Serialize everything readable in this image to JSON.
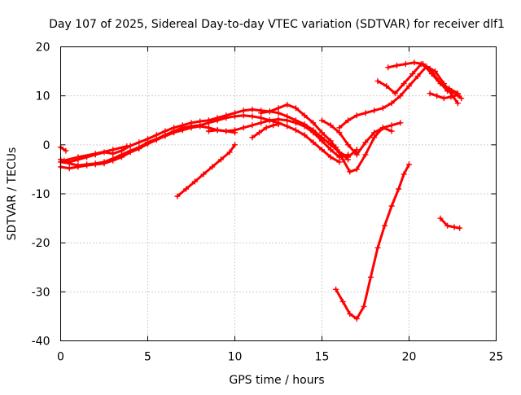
{
  "chart_data": {
    "type": "line",
    "title": "Day 107 of 2025, Sidereal Day-to-day VTEC variation (SDTVAR) for receiver dlf1",
    "xlabel": "GPS time / hours",
    "ylabel": "SDTVAR / TECUs",
    "xlim": [
      0,
      25
    ],
    "ylim": [
      -40,
      20
    ],
    "xticks": [
      0,
      5,
      10,
      15,
      20,
      25
    ],
    "yticks": [
      -40,
      -30,
      -20,
      -10,
      0,
      10,
      20
    ],
    "xtick_labels": [
      "0",
      "5",
      "10",
      "15",
      "20",
      "25"
    ],
    "ytick_labels": [
      "-40",
      "-30",
      "-20",
      "-10",
      "0",
      "10",
      "20"
    ],
    "grid": true,
    "legend": "none",
    "series_color": "#ff0000",
    "series": [
      {
        "name": "s1",
        "x": [
          0.0,
          0.5,
          1.0,
          1.5,
          2.0,
          2.5,
          3.0,
          3.5,
          4.0,
          4.5,
          5.0,
          5.5,
          6.0,
          6.5,
          7.0,
          7.5,
          8.0,
          8.5,
          9.0,
          9.5,
          10.0,
          10.5,
          11.0,
          11.5,
          12.0,
          12.5,
          13.0,
          13.5,
          14.0,
          14.5,
          15.0,
          15.5,
          16.0
        ],
        "y": [
          -3.5,
          -3.8,
          -4.2,
          -4.0,
          -3.8,
          -3.5,
          -2.8,
          -2.0,
          -1.2,
          -0.5,
          0.5,
          1.2,
          2.0,
          2.8,
          3.5,
          3.8,
          4.0,
          4.5,
          5.0,
          5.5,
          5.8,
          6.0,
          5.8,
          5.5,
          5.0,
          4.5,
          3.8,
          3.0,
          2.0,
          0.5,
          -1.0,
          -2.5,
          -3.5
        ]
      },
      {
        "name": "s2",
        "x": [
          0.0,
          0.5,
          1.0,
          1.5,
          2.0,
          2.5,
          3.0,
          3.5,
          4.0,
          4.5,
          5.0,
          5.5,
          6.0,
          6.5,
          7.0,
          7.5,
          8.0,
          8.5,
          9.0,
          9.5,
          10.0,
          10.5,
          11.0,
          11.5,
          12.0,
          12.5,
          13.0,
          13.5,
          14.0,
          14.5,
          15.0,
          15.5,
          16.0,
          16.5
        ],
        "y": [
          -4.5,
          -4.8,
          -4.5,
          -4.2,
          -4.0,
          -3.8,
          -3.2,
          -2.5,
          -1.5,
          -0.8,
          0.2,
          1.0,
          1.8,
          2.5,
          3.0,
          3.5,
          3.8,
          3.5,
          3.0,
          2.8,
          3.0,
          3.5,
          4.0,
          4.5,
          5.0,
          5.2,
          5.0,
          4.5,
          3.8,
          2.5,
          0.8,
          -1.0,
          -2.5,
          -2.0
        ]
      },
      {
        "name": "s3",
        "x": [
          0.0,
          0.5,
          1.0,
          1.5,
          2.0,
          2.5,
          3.0,
          3.5,
          4.0,
          4.5,
          5.0,
          5.5,
          6.0,
          6.5,
          7.0,
          7.5,
          8.0,
          8.5,
          9.0,
          9.5,
          10.0,
          10.5,
          11.0,
          11.5,
          12.0,
          12.5,
          13.0,
          13.5,
          14.0,
          14.5,
          15.0,
          15.5,
          16.0,
          16.5,
          17.0
        ],
        "y": [
          -3.0,
          -3.5,
          -3.0,
          -2.5,
          -2.0,
          -1.5,
          -1.8,
          -1.2,
          -0.2,
          0.5,
          1.2,
          2.0,
          2.8,
          3.5,
          4.0,
          4.5,
          4.8,
          5.0,
          5.5,
          6.0,
          6.5,
          7.0,
          7.2,
          7.0,
          6.8,
          6.5,
          5.8,
          5.0,
          4.2,
          3.0,
          1.5,
          0.0,
          -1.5,
          -2.5,
          -1.0
        ]
      },
      {
        "name": "s4",
        "x": [
          0.2,
          1.0,
          2.0,
          3.0,
          3.8
        ],
        "y": [
          -3.2,
          -2.5,
          -1.8,
          -1.0,
          -0.3
        ]
      },
      {
        "name": "s5",
        "x": [
          0.0,
          0.3
        ],
        "y": [
          -0.5,
          -1.2
        ]
      },
      {
        "name": "s6",
        "x": [
          6.7,
          7.2,
          7.7,
          8.2,
          8.7,
          9.2,
          9.7,
          10.0
        ],
        "y": [
          -10.5,
          -9.0,
          -7.5,
          -6.0,
          -4.5,
          -3.0,
          -1.5,
          0.0
        ]
      },
      {
        "name": "s7",
        "x": [
          8.5,
          9.0,
          9.5,
          10.0
        ],
        "y": [
          2.8,
          3.0,
          2.8,
          2.5
        ]
      },
      {
        "name": "s8",
        "x": [
          11.0,
          11.4,
          11.8,
          12.2,
          12.5
        ],
        "y": [
          1.5,
          2.5,
          3.5,
          4.0,
          4.2
        ]
      },
      {
        "name": "s9",
        "x": [
          11.5,
          12.0,
          12.5,
          13.0,
          13.5,
          14.0,
          14.5,
          15.0,
          15.5,
          16.0,
          16.5
        ],
        "y": [
          6.5,
          6.8,
          7.5,
          8.2,
          7.5,
          6.0,
          4.5,
          2.5,
          0.8,
          -1.5,
          -3.0
        ]
      },
      {
        "name": "s10",
        "x": [
          15.0,
          15.5,
          16.0,
          16.5,
          17.0,
          17.5,
          18.0,
          18.5,
          19.0,
          19.5
        ],
        "y": [
          5.0,
          4.0,
          2.5,
          0.0,
          -2.0,
          0.5,
          2.5,
          3.5,
          4.0,
          4.5
        ]
      },
      {
        "name": "s11",
        "x": [
          15.8,
          16.2,
          16.6,
          17.0,
          17.5,
          18.0,
          18.5,
          19.0
        ],
        "y": [
          -0.5,
          -3.0,
          -5.5,
          -5.0,
          -2.0,
          1.5,
          3.5,
          2.8
        ]
      },
      {
        "name": "s12",
        "x": [
          16.0,
          16.5,
          17.0,
          17.5,
          18.0,
          18.5,
          19.0,
          19.5,
          20.0,
          20.5,
          21.0,
          21.5,
          22.0,
          22.5,
          22.8
        ],
        "y": [
          3.5,
          5.0,
          6.0,
          6.5,
          7.0,
          7.5,
          8.5,
          10.0,
          12.0,
          14.0,
          16.0,
          15.0,
          12.5,
          10.0,
          8.5
        ]
      },
      {
        "name": "s13",
        "x": [
          18.2,
          18.7,
          19.2,
          19.7,
          20.2,
          20.7,
          21.2,
          21.7,
          22.2,
          22.7,
          23.0
        ],
        "y": [
          13.0,
          12.0,
          10.5,
          12.5,
          14.5,
          16.5,
          15.5,
          13.0,
          11.0,
          10.5,
          9.5
        ]
      },
      {
        "name": "s14",
        "x": [
          18.8,
          19.3,
          19.8,
          20.3,
          20.8,
          21.3,
          21.8,
          22.3,
          22.8
        ],
        "y": [
          15.8,
          16.2,
          16.5,
          16.8,
          16.5,
          14.5,
          12.5,
          11.5,
          10.5
        ]
      },
      {
        "name": "s15",
        "x": [
          21.2,
          21.6,
          22.0,
          22.4,
          22.8
        ],
        "y": [
          10.5,
          10.0,
          9.5,
          9.8,
          10.2
        ]
      },
      {
        "name": "s16",
        "x": [
          15.8,
          16.2,
          16.6,
          17.0,
          17.4,
          17.8,
          18.2,
          18.6,
          19.0,
          19.4,
          19.7,
          20.0
        ],
        "y": [
          -29.5,
          -32.0,
          -34.5,
          -35.5,
          -33.0,
          -27.0,
          -21.0,
          -16.5,
          -12.5,
          -9.0,
          -6.0,
          -4.0
        ]
      },
      {
        "name": "s17",
        "x": [
          21.8,
          22.2,
          22.6,
          22.9
        ],
        "y": [
          -15.0,
          -16.5,
          -16.8,
          -17.0
        ]
      }
    ]
  }
}
